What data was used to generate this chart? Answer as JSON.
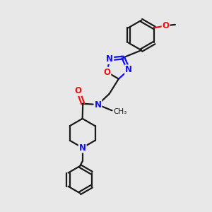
{
  "background_color": "#e8e8e8",
  "bond_color": "#1a1a1a",
  "nitrogen_color": "#1010ee",
  "oxygen_color": "#ee1010",
  "bond_width": 1.6,
  "font_size_atom": 8.5,
  "figsize": [
    3.0,
    3.0
  ],
  "dpi": 100,
  "xlim": [
    0,
    10
  ],
  "ylim": [
    0,
    10
  ]
}
